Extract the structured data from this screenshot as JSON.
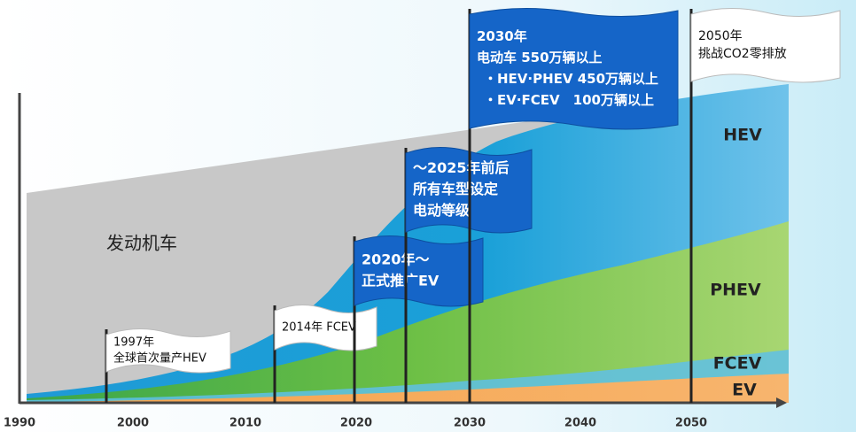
{
  "x_axis": {
    "ticks": [
      "1990",
      "2000",
      "2010",
      "2020",
      "2030",
      "2040",
      "2050"
    ]
  },
  "areas": [
    {
      "label": "发动机车"
    },
    {
      "label": "HEV"
    },
    {
      "label": "PHEV"
    },
    {
      "label": "FCEV"
    },
    {
      "label": "EV"
    }
  ],
  "flags": [
    {
      "lines": [
        "1997年",
        "全球首次量产HEV"
      ]
    },
    {
      "lines": [
        "2014年 FCEV"
      ]
    },
    {
      "lines": [
        "2020年～",
        "正式推广EV"
      ]
    },
    {
      "lines": [
        "～2025年前后",
        "所有车型设定",
        "电动等级"
      ]
    },
    {
      "lines": [
        "2030年",
        "电动车 550万辆以上",
        "・HEV·PHEV 450万辆以上",
        "・EV·FCEV　100万辆以上"
      ]
    },
    {
      "lines": [
        "2050年",
        "挑战CO2零排放"
      ]
    }
  ]
}
